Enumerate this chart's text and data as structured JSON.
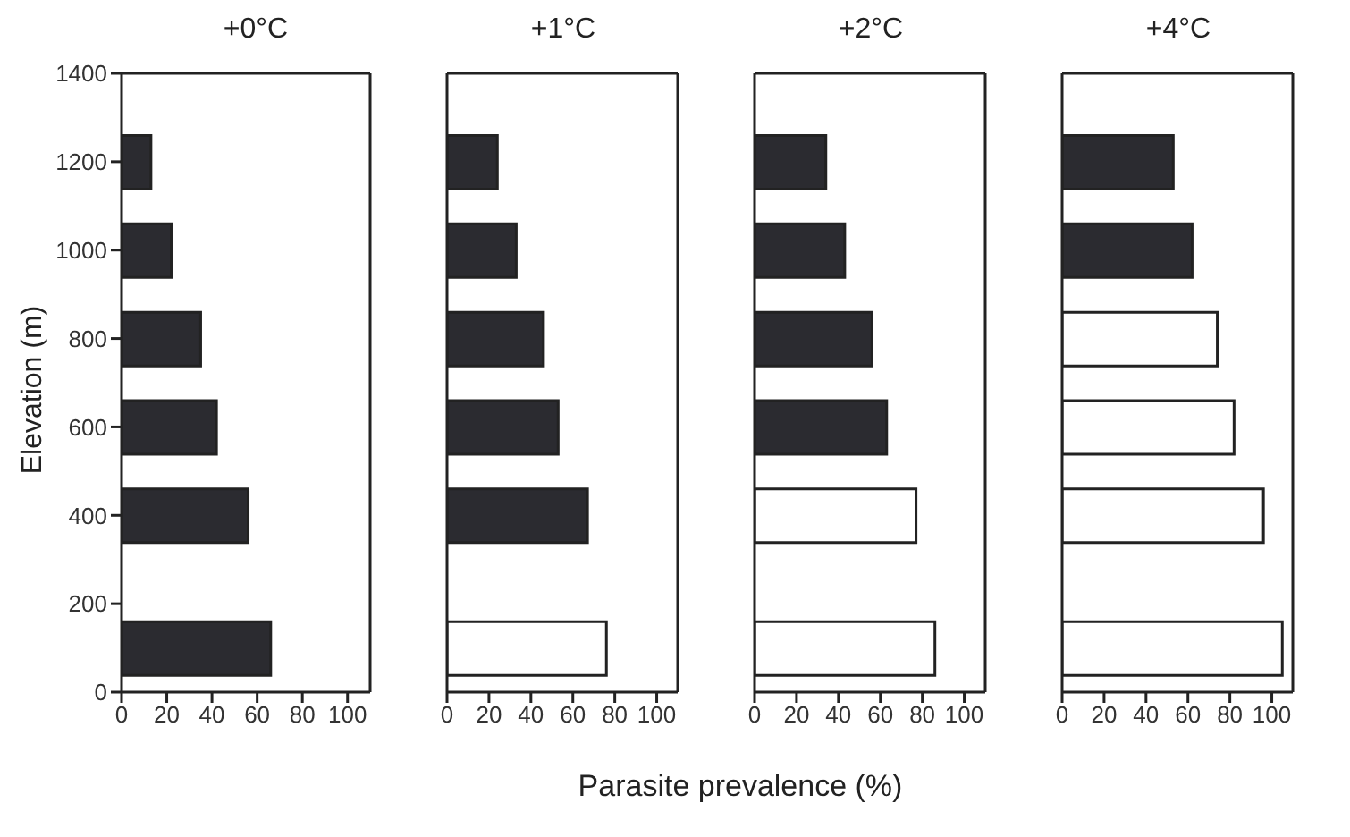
{
  "chart_data": [
    {
      "type": "bar",
      "orientation": "horizontal",
      "title": "+0°C",
      "ylabel": "Elevation (m)",
      "x": [
        100,
        400,
        600,
        800,
        1000,
        1200
      ],
      "values": [
        66,
        56,
        42,
        35,
        22,
        13
      ],
      "colors": [
        "#2b2b30",
        "#2b2b30",
        "#2b2b30",
        "#2b2b30",
        "#2b2b30",
        "#2b2b30"
      ],
      "xlim": [
        0,
        110
      ],
      "xticks": [
        0,
        20,
        40,
        60,
        80,
        100
      ],
      "ylim": [
        0,
        1400
      ],
      "yticks": [
        0,
        200,
        400,
        600,
        800,
        1000,
        1200,
        1400
      ],
      "grid": false
    },
    {
      "type": "bar",
      "orientation": "horizontal",
      "title": "+1°C",
      "x": [
        100,
        400,
        600,
        800,
        1000,
        1200
      ],
      "values": [
        76,
        67,
        53,
        46,
        33,
        24
      ],
      "colors": [
        "#ffffff",
        "#2b2b30",
        "#2b2b30",
        "#2b2b30",
        "#2b2b30",
        "#2b2b30"
      ],
      "xlim": [
        0,
        110
      ],
      "xticks": [
        0,
        20,
        40,
        60,
        80,
        100
      ],
      "ylim": [
        0,
        1400
      ],
      "yticks": [
        0,
        200,
        400,
        600,
        800,
        1000,
        1200,
        1400
      ],
      "tick_labels": "x",
      "grid": false
    },
    {
      "type": "bar",
      "orientation": "horizontal",
      "title": "+2°C",
      "xlabel": "Parasite prevalence (%)",
      "x": [
        100,
        400,
        600,
        800,
        1000,
        1200
      ],
      "values": [
        86,
        77,
        63,
        56,
        43,
        34
      ],
      "colors": [
        "#ffffff",
        "#ffffff",
        "#2b2b30",
        "#2b2b30",
        "#2b2b30",
        "#2b2b30"
      ],
      "xlim": [
        0,
        110
      ],
      "xticks": [
        0,
        20,
        40,
        60,
        80,
        100
      ],
      "ylim": [
        0,
        1400
      ],
      "yticks": [
        0,
        200,
        400,
        600,
        800,
        1000,
        1200,
        1400
      ],
      "tick_labels": "x",
      "grid": false
    },
    {
      "type": "bar",
      "orientation": "horizontal",
      "title": "+4°C",
      "x": [
        100,
        400,
        600,
        800,
        1000,
        1200
      ],
      "values": [
        105,
        96,
        82,
        74,
        62,
        53
      ],
      "colors": [
        "#ffffff",
        "#ffffff",
        "#ffffff",
        "#ffffff",
        "#2b2b30",
        "#2b2b30"
      ],
      "xlim": [
        0,
        110
      ],
      "xticks": [
        0,
        20,
        40,
        60,
        80,
        100
      ],
      "ylim": [
        0,
        1400
      ],
      "yticks": [
        0,
        200,
        400,
        600,
        800,
        1000,
        1200,
        1400
      ],
      "tick_labels": "x",
      "grid": false
    }
  ]
}
